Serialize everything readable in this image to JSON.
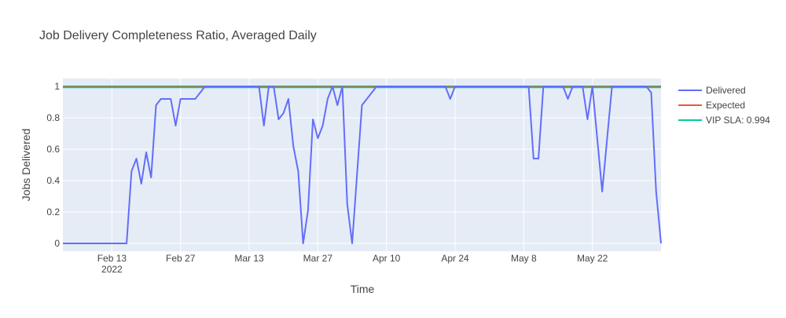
{
  "chart_data": {
    "type": "line",
    "title": "Job Delivery Completeness Ratio, Averaged Daily",
    "xlabel": "Time",
    "ylabel": "Jobs Delivered",
    "x_range": [
      "2022-02-03",
      "2022-06-05"
    ],
    "ylim": [
      -0.05,
      1.05
    ],
    "y_ticks": [
      0,
      0.2,
      0.4,
      0.6,
      0.8,
      1
    ],
    "y_tick_labels": [
      "0",
      "0.2",
      "0.4",
      "0.6",
      "0.8",
      "1"
    ],
    "x_ticks": [
      {
        "date": "2022-02-13",
        "label": "Feb 13",
        "sublabel": "2022"
      },
      {
        "date": "2022-02-27",
        "label": "Feb 27",
        "sublabel": ""
      },
      {
        "date": "2022-03-13",
        "label": "Mar 13",
        "sublabel": ""
      },
      {
        "date": "2022-03-27",
        "label": "Mar 27",
        "sublabel": ""
      },
      {
        "date": "2022-04-10",
        "label": "Apr 10",
        "sublabel": ""
      },
      {
        "date": "2022-04-24",
        "label": "Apr 24",
        "sublabel": ""
      },
      {
        "date": "2022-05-08",
        "label": "May 8",
        "sublabel": ""
      },
      {
        "date": "2022-05-22",
        "label": "May 22",
        "sublabel": ""
      }
    ],
    "grid": true,
    "background": "#e5ecf6",
    "legend_position": "right",
    "series": [
      {
        "name": "Delivered",
        "color": "#636efa",
        "points": [
          [
            "2022-02-03",
            0
          ],
          [
            "2022-02-16",
            0
          ],
          [
            "2022-02-17",
            0.46
          ],
          [
            "2022-02-18",
            0.54
          ],
          [
            "2022-02-19",
            0.38
          ],
          [
            "2022-02-20",
            0.58
          ],
          [
            "2022-02-21",
            0.42
          ],
          [
            "2022-02-22",
            0.88
          ],
          [
            "2022-02-23",
            0.92
          ],
          [
            "2022-02-25",
            0.92
          ],
          [
            "2022-02-26",
            0.75
          ],
          [
            "2022-02-27",
            0.92
          ],
          [
            "2022-03-02",
            0.92
          ],
          [
            "2022-03-04",
            1
          ],
          [
            "2022-03-15",
            1
          ],
          [
            "2022-03-16",
            0.75
          ],
          [
            "2022-03-17",
            1
          ],
          [
            "2022-03-18",
            1
          ],
          [
            "2022-03-19",
            0.79
          ],
          [
            "2022-03-20",
            0.83
          ],
          [
            "2022-03-21",
            0.92
          ],
          [
            "2022-03-22",
            0.62
          ],
          [
            "2022-03-23",
            0.46
          ],
          [
            "2022-03-24",
            0
          ],
          [
            "2022-03-25",
            0.21
          ],
          [
            "2022-03-26",
            0.79
          ],
          [
            "2022-03-27",
            0.67
          ],
          [
            "2022-03-28",
            0.75
          ],
          [
            "2022-03-29",
            0.92
          ],
          [
            "2022-03-30",
            1
          ],
          [
            "2022-03-31",
            0.88
          ],
          [
            "2022-04-01",
            1
          ],
          [
            "2022-04-02",
            0.25
          ],
          [
            "2022-04-03",
            0
          ],
          [
            "2022-04-05",
            0.88
          ],
          [
            "2022-04-08",
            1
          ],
          [
            "2022-04-22",
            1
          ],
          [
            "2022-04-23",
            0.92
          ],
          [
            "2022-04-24",
            1
          ],
          [
            "2022-05-09",
            1
          ],
          [
            "2022-05-10",
            0.54
          ],
          [
            "2022-05-11",
            0.54
          ],
          [
            "2022-05-12",
            1
          ],
          [
            "2022-05-16",
            1
          ],
          [
            "2022-05-17",
            0.92
          ],
          [
            "2022-05-18",
            1
          ],
          [
            "2022-05-20",
            1
          ],
          [
            "2022-05-21",
            0.79
          ],
          [
            "2022-05-22",
            1
          ],
          [
            "2022-05-24",
            0.33
          ],
          [
            "2022-05-26",
            1
          ],
          [
            "2022-06-02",
            1
          ],
          [
            "2022-06-03",
            0.96
          ],
          [
            "2022-06-04",
            0.33
          ],
          [
            "2022-06-05",
            0
          ]
        ]
      },
      {
        "name": "Expected",
        "color": "#ef553b",
        "points": [
          [
            "2022-02-03",
            1
          ],
          [
            "2022-06-05",
            1
          ]
        ]
      },
      {
        "name": "VIP SLA: 0.994",
        "color": "#00cc96",
        "points": [
          [
            "2022-02-03",
            0.994
          ],
          [
            "2022-06-05",
            0.994
          ]
        ]
      }
    ]
  }
}
